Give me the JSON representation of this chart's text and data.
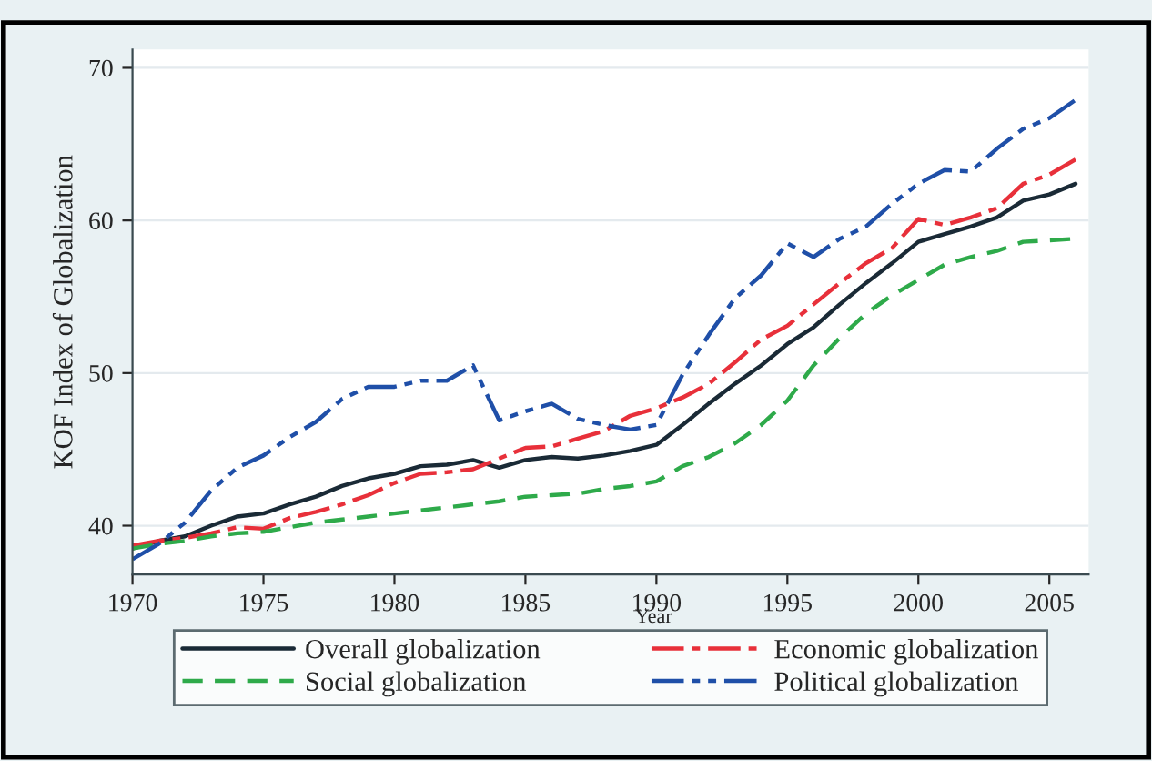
{
  "chart_data": {
    "type": "line",
    "xlabel": "Year",
    "ylabel": "KOF Index of Globalization",
    "x": [
      1970,
      1971,
      1972,
      1973,
      1974,
      1975,
      1976,
      1977,
      1978,
      1979,
      1980,
      1981,
      1982,
      1983,
      1984,
      1985,
      1986,
      1987,
      1988,
      1989,
      1990,
      1991,
      1992,
      1993,
      1994,
      1995,
      1996,
      1997,
      1998,
      1999,
      2000,
      2001,
      2002,
      2003,
      2004,
      2005,
      2006
    ],
    "series": [
      {
        "name": "Overall globalization",
        "color": "#1a2a36",
        "line_style": "solid",
        "values": [
          38.5,
          39.0,
          39.3,
          40.0,
          40.6,
          40.8,
          41.4,
          41.9,
          42.6,
          43.1,
          43.4,
          43.9,
          44.0,
          44.3,
          43.8,
          44.3,
          44.5,
          44.4,
          44.6,
          44.9,
          45.3,
          46.6,
          48.0,
          49.3,
          50.5,
          51.9,
          53.0,
          54.5,
          55.9,
          57.2,
          58.6,
          59.1,
          59.6,
          60.2,
          61.3,
          61.7,
          62.4
        ]
      },
      {
        "name": "Economic globalization",
        "color": "#e8303a",
        "line_style": "dashdot",
        "values": [
          38.7,
          39.0,
          39.2,
          39.5,
          39.9,
          39.8,
          40.5,
          40.9,
          41.4,
          42.0,
          42.8,
          43.4,
          43.5,
          43.7,
          44.4,
          45.1,
          45.2,
          45.7,
          46.2,
          47.2,
          47.7,
          48.4,
          49.3,
          50.7,
          52.2,
          53.1,
          54.5,
          55.9,
          57.2,
          58.2,
          60.1,
          59.7,
          60.2,
          60.8,
          62.4,
          63.0,
          64.0
        ]
      },
      {
        "name": "Social globalization",
        "color": "#2eaa4a",
        "line_style": "dashed",
        "values": [
          38.5,
          38.8,
          39.0,
          39.3,
          39.5,
          39.6,
          39.9,
          40.2,
          40.4,
          40.6,
          40.8,
          41.0,
          41.2,
          41.4,
          41.6,
          41.9,
          42.0,
          42.1,
          42.4,
          42.6,
          42.9,
          43.9,
          44.5,
          45.4,
          46.6,
          48.2,
          50.5,
          52.3,
          53.9,
          55.1,
          56.1,
          57.1,
          57.6,
          58.0,
          58.6,
          58.7,
          58.8
        ]
      },
      {
        "name": "Political globalization",
        "color": "#1f4fa8",
        "line_style": "dashdotdot",
        "values": [
          37.8,
          38.8,
          40.2,
          42.3,
          43.8,
          44.6,
          45.8,
          46.8,
          48.3,
          49.1,
          49.1,
          49.5,
          49.5,
          50.5,
          46.9,
          47.5,
          48.0,
          47.0,
          46.6,
          46.3,
          46.6,
          49.9,
          52.5,
          54.9,
          56.4,
          58.5,
          57.6,
          58.8,
          59.6,
          61.1,
          62.4,
          63.3,
          63.2,
          64.7,
          66.0,
          66.7,
          67.9
        ]
      }
    ],
    "xlim": [
      1970,
      2006.5
    ],
    "ylim": [
      36.8,
      71.2
    ],
    "xticks": [
      1970,
      1975,
      1980,
      1985,
      1990,
      1995,
      2000,
      2005
    ],
    "yticks": [
      40,
      50,
      60,
      70
    ],
    "grid": "y",
    "legend": "bottom",
    "marker": "none"
  }
}
